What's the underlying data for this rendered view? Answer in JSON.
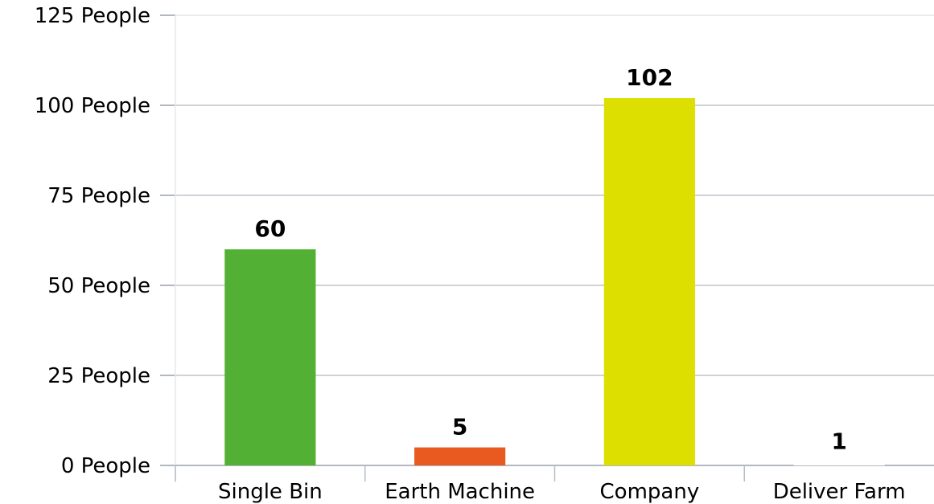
{
  "chart_data": {
    "type": "bar",
    "categories": [
      "Single Bin",
      "Earth Machine",
      "Company",
      "Deliver Farm"
    ],
    "values": [
      60,
      5,
      102,
      1
    ],
    "data_labels": [
      "60",
      "5",
      "102",
      "1"
    ],
    "colors": [
      "#52b035",
      "#e85a20",
      "#dddf00",
      "#ffffff"
    ],
    "title": "",
    "xlabel": "",
    "ylabel": "",
    "ylim": [
      0,
      125
    ],
    "yticks": [
      0,
      25,
      50,
      75,
      100,
      125
    ],
    "ytick_labels": [
      "0 People",
      "25 People",
      "50 People",
      "75 People",
      "100 People",
      "125 People"
    ],
    "grid": true,
    "grid_color": "#c0c4cc",
    "legend": "none"
  }
}
